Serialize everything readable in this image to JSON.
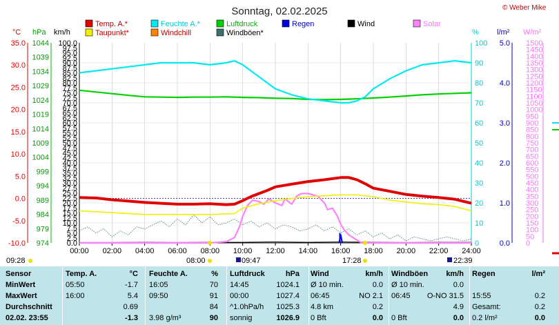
{
  "header": {
    "title": "Sonntag, 02.02.2025",
    "brand": "© Weber Mike"
  },
  "legend": [
    {
      "label": "Temp. A.*",
      "color": "#e00000"
    },
    {
      "label": "Feuchte A.*",
      "color": "#00e8f0"
    },
    {
      "label": "Luftdruck",
      "color": "#00d000"
    },
    {
      "label": "Regen",
      "color": "#0000e0"
    },
    {
      "label": "Wind",
      "color": "#000000"
    },
    {
      "label": "Solar",
      "color": "#ff80ff"
    },
    {
      "label": "Taupunkt*",
      "color": "#f0f000"
    },
    {
      "label": "Windchill",
      "color": "#ff8000"
    },
    {
      "label": "Windböen*",
      "color": "#3a7070"
    }
  ],
  "axes": {
    "temp_unit": "°C",
    "press_unit": "hPa",
    "wind_unit": "km/h",
    "hum_unit": "%",
    "rain_unit": "l/m²",
    "solar_unit": "W/m²",
    "temp_ticks": [
      "35.0",
      "30.0",
      "25.0",
      "20.0",
      "15.0",
      "10.0",
      "5.0",
      "0.0",
      "-5.0",
      "-10.0"
    ],
    "press_ticks": [
      "1044",
      "1039",
      "1034",
      "1029",
      "1024",
      "1019",
      "1014",
      "1009",
      "1004",
      "999",
      "994",
      "989",
      "984",
      "979",
      "974"
    ],
    "wind_ticks": [
      "100.0",
      "97.5",
      "95.0",
      "92.5",
      "90.0",
      "87.5",
      "85.0",
      "82.5",
      "80.0",
      "77.5",
      "75.0",
      "72.5",
      "70.0",
      "67.5",
      "65.0",
      "62.5",
      "60.0",
      "57.5",
      "55.0",
      "52.5",
      "50.0",
      "47.5",
      "45.0",
      "42.5",
      "40.0",
      "37.5",
      "35.0",
      "32.5",
      "30.0",
      "27.5",
      "25.0",
      "22.5",
      "20.0",
      "17.5",
      "15.0",
      "12.5",
      "10.0",
      "7.5",
      "5.0",
      "2.5",
      "0.0"
    ],
    "hum_ticks": [
      "100",
      "90",
      "80",
      "70",
      "60",
      "50",
      "40",
      "30",
      "20",
      "10",
      "0"
    ],
    "rain_ticks": [
      "5.0",
      "4.0",
      "3.0",
      "2.0",
      "1.0",
      "0.0"
    ],
    "solar_ticks": [
      "1500",
      "1450",
      "1400",
      "1350",
      "1300",
      "1250",
      "1200",
      "1150",
      "1100",
      "1050",
      "1000",
      "950",
      "900",
      "850",
      "800",
      "750",
      "700",
      "650",
      "600",
      "550",
      "500",
      "450",
      "400",
      "350",
      "300",
      "250",
      "200",
      "150",
      "100",
      "50",
      "0"
    ],
    "x_ticks": [
      "00:00",
      "02:00",
      "04:00",
      "06:00",
      "08:00",
      "10:00",
      "12:00",
      "14:00",
      "16:00",
      "18:00",
      "20:00",
      "22:00",
      "24:00"
    ]
  },
  "events": {
    "sunrise_left": "09:28",
    "dawn": "08:00",
    "sunrise": "09:47",
    "sunset": "17:28",
    "dusk": "22:39"
  },
  "chart_data": {
    "type": "line",
    "x_unit": "hours",
    "series": [
      {
        "name": "Temp. A.*",
        "axis": "temp",
        "color": "#e00000",
        "x": [
          0,
          1,
          2,
          3,
          4,
          5,
          6,
          7,
          8,
          9,
          9.5,
          10,
          10.5,
          11,
          11.5,
          12,
          13,
          14,
          15,
          16,
          16.5,
          17,
          17.5,
          18,
          19,
          20,
          21,
          22,
          23,
          24
        ],
        "y": [
          0.2,
          0.1,
          -0.3,
          -0.6,
          -0.9,
          -1.1,
          -1.3,
          -1.3,
          -1.2,
          -1.4,
          -1.3,
          -0.5,
          0.4,
          1.1,
          1.8,
          2.6,
          3.2,
          3.8,
          4.2,
          4.7,
          4.7,
          4.2,
          3.3,
          2.3,
          1.6,
          0.9,
          0.5,
          0.2,
          -0.2,
          -1.1
        ]
      },
      {
        "name": "Taupunkt*",
        "axis": "temp",
        "color": "#f0f000",
        "x": [
          0,
          2,
          4,
          6,
          8,
          9.5,
          10,
          11,
          12,
          13,
          14,
          15,
          16,
          17,
          18,
          19,
          20,
          21,
          22,
          23,
          24
        ],
        "y": [
          -2.8,
          -3.2,
          -3.6,
          -3.6,
          -3.6,
          -3.4,
          -2.2,
          -1.2,
          -0.5,
          0.0,
          0.4,
          0.6,
          0.8,
          0.8,
          0.4,
          -0.4,
          -0.8,
          -1.2,
          -1.4,
          -1.8,
          -2.8
        ]
      },
      {
        "name": "Feuchte A.*",
        "axis": "hum",
        "color": "#00e8f0",
        "x": [
          0,
          1,
          2,
          3,
          4,
          5,
          6,
          7,
          8,
          9,
          9.5,
          10,
          10.5,
          11,
          11.5,
          12,
          13,
          14,
          15,
          16,
          16.5,
          17,
          17.5,
          18,
          19,
          20,
          21,
          22,
          23,
          24
        ],
        "y": [
          85,
          86,
          87,
          88,
          89,
          90,
          90,
          90,
          89,
          90,
          91,
          89,
          86,
          83,
          80,
          77,
          74,
          72,
          71,
          70,
          70,
          71,
          73,
          77,
          82,
          86,
          89,
          90,
          91,
          90
        ]
      },
      {
        "name": "Luftdruck",
        "axis": "press",
        "color": "#00d000",
        "x": [
          0,
          1,
          2,
          3,
          4,
          5,
          6,
          7,
          8,
          9,
          10,
          11,
          12,
          13,
          14,
          15,
          16,
          17,
          18,
          19,
          20,
          21,
          22,
          23,
          24
        ],
        "y": [
          1027.4,
          1026.8,
          1026.2,
          1025.6,
          1025.1,
          1025.0,
          1024.9,
          1025.0,
          1025.0,
          1025.1,
          1024.9,
          1024.8,
          1024.6,
          1024.5,
          1024.2,
          1024.1,
          1024.2,
          1024.4,
          1024.7,
          1025.0,
          1025.4,
          1025.8,
          1026.1,
          1026.3,
          1026.5
        ]
      },
      {
        "name": "Solar",
        "axis": "solar",
        "color": "#ff80ff",
        "x": [
          0,
          8,
          9,
          9.5,
          9.8,
          10,
          10.3,
          10.6,
          11,
          11.3,
          11.6,
          12,
          12.4,
          12.6,
          12.8,
          13,
          13.3,
          13.6,
          14,
          14.3,
          14.6,
          15,
          15.2,
          15.5,
          15.8,
          16,
          16.2,
          16.5,
          17,
          17.3,
          24
        ],
        "y": [
          0,
          0,
          10,
          40,
          120,
          200,
          280,
          320,
          310,
          290,
          330,
          300,
          280,
          330,
          310,
          290,
          350,
          370,
          370,
          360,
          350,
          300,
          250,
          260,
          200,
          140,
          100,
          60,
          20,
          0,
          0
        ]
      },
      {
        "name": "Wind",
        "axis": "wind",
        "color": "#000000",
        "x": [
          0,
          2,
          4,
          6,
          8,
          10,
          12,
          14,
          16,
          18,
          20,
          22,
          24
        ],
        "y": [
          0.2,
          0.2,
          0.3,
          0.2,
          0.3,
          0.3,
          0.5,
          0.3,
          0.5,
          0.3,
          0.2,
          0.3,
          0.3
        ]
      },
      {
        "name": "Windböen*",
        "axis": "wind",
        "color": "#3a7070",
        "x": [
          0,
          0.5,
          1,
          1.5,
          2,
          2.5,
          3,
          3.5,
          4,
          4.5,
          5,
          5.5,
          6,
          6.5,
          7,
          7.5,
          8,
          8.5,
          9,
          9.5,
          10,
          10.5,
          11,
          11.5,
          12,
          12.5,
          13,
          13.5,
          14,
          14.5,
          15,
          15.5,
          16,
          16.5,
          17,
          17.5,
          18,
          18.5,
          19,
          19.5,
          20,
          20.5,
          21,
          21.5,
          22,
          22.5,
          23,
          23.5,
          24
        ],
        "y": [
          6,
          8,
          5,
          7,
          3,
          6,
          4,
          8,
          7,
          9,
          11,
          8,
          12,
          9,
          14,
          10,
          13,
          9,
          10,
          12,
          9,
          11,
          8,
          10,
          7,
          9,
          8,
          6,
          7,
          9,
          6,
          8,
          5,
          7,
          4,
          6,
          3,
          5,
          2,
          4,
          1,
          3,
          2,
          1,
          2,
          3,
          2,
          1,
          2
        ]
      },
      {
        "name": "Regen",
        "axis": "rain",
        "color": "#0000e0",
        "x": [
          15.9,
          16.0,
          16.1
        ],
        "y": [
          0,
          0.2,
          0
        ]
      }
    ]
  },
  "stats": {
    "headers": [
      "Sensor",
      "Temp. A.",
      "°C",
      "Feuchte A.",
      "%",
      "Luftdruck",
      "hPa",
      "Wind",
      "km/h",
      "Windböen",
      "km/h",
      "Regen",
      "l/m²"
    ],
    "rows": [
      {
        "label": "MinWert",
        "cells": [
          "05:50",
          "-1.7",
          "16:05",
          "70",
          "14:45",
          "1024.1",
          "Ø 10 min.",
          "0.0",
          "Ø 10 min.",
          "0.0",
          "",
          ""
        ]
      },
      {
        "label": "MaxWert",
        "cells": [
          "16:00",
          "5.4",
          "09:50",
          "91",
          "00:00",
          "1027.4",
          "06:45",
          "NO 2.1",
          "06:45",
          "O-NO 31.5",
          "15:55",
          "0.2"
        ]
      },
      {
        "label": "Durchschnitt",
        "cells": [
          "",
          "0.69",
          "",
          "84",
          "^1.0hPa/h",
          "1025.3",
          "4.8 km",
          "0.2",
          "",
          "4.9",
          "Gesamt:",
          "0.2"
        ]
      },
      {
        "label": "02.02. 23:55",
        "cells": [
          "",
          "-1.3",
          "3.98 g/m³",
          "90",
          "sonnig",
          "1026.9",
          "0 Bft",
          "0.0",
          "0 Bft",
          "0.0",
          "0.2 l/m²",
          "0.0"
        ]
      }
    ]
  }
}
